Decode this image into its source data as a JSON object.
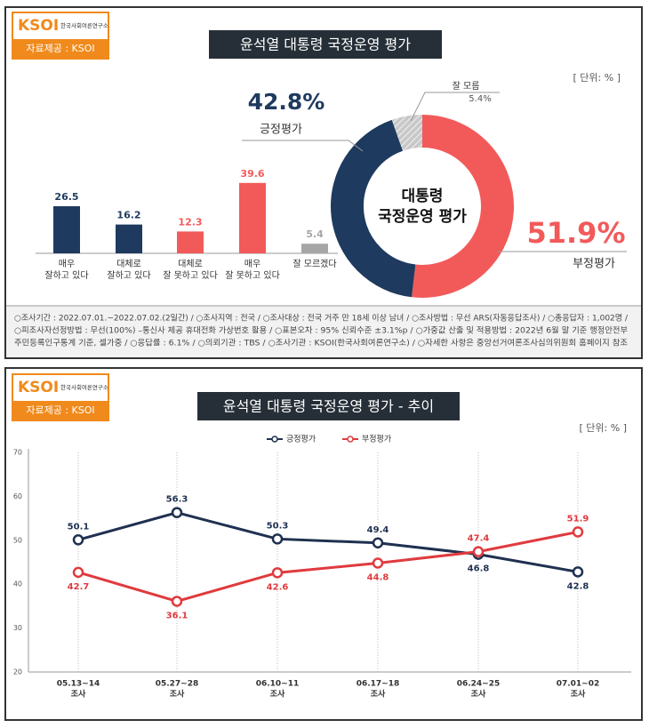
{
  "panels": [
    {
      "logo": "KSOI",
      "logo_sub": "한국사회여론연구소",
      "source": "자료제공 : KSOI",
      "title": "윤석열 대통령 국정운영 평가",
      "unit": "[ 단위: % ]",
      "footnote": [
        "○조사기간 : 2022.07.01.~2022.07.02.(2일간) / ○조사지역 : 전국 / ○조사대상 : 전국 거주 만 18세 이상 남녀 / ○조사방법 : 무선 ARS(자동응답조사) / ○총응답자 : 1,002명 /",
        "○피조사자선정방법 : 무선(100%) –통신사 제공 휴대전화 가상번호 활용 / ○표본오차 : 95% 신뢰수준 ±3.1%p / ○가중값 산출 및 적용방법 : 2022년 6월 말 기준 행정안전부",
        "주민등록인구통계 기준, 셀가중 / ○응답률 : 6.1% / ○의뢰기관 : TBS / ○조사기관 : KSOI(한국사회여론연구소) / ○자세한 사항은 중앙선거여론조사심의위원회 홈페이지 참조"
      ]
    },
    {
      "logo": "KSOI",
      "logo_sub": "한국사회여론연구소",
      "source": "자료제공 : KSOI",
      "title": "윤석열 대통령 국정운영 평가 - 추이",
      "unit": "[ 단위: % ]"
    }
  ],
  "chart_data": [
    {
      "type": "bar",
      "categories": [
        [
          "매우",
          "잘하고 있다"
        ],
        [
          "대체로",
          "잘하고 있다"
        ],
        [
          "대체로",
          "잘 못하고 있다"
        ],
        [
          "매우",
          "잘 못하고 있다"
        ],
        [
          "잘 모르겠다"
        ]
      ],
      "values": [
        26.5,
        16.2,
        12.3,
        39.6,
        5.4
      ],
      "colors": [
        "#1f3a5f",
        "#1f3a5f",
        "#f25a5a",
        "#f25a5a",
        "#a6a6a6"
      ]
    },
    {
      "type": "pie",
      "center_text": [
        "대통령",
        "국정운영 평가"
      ],
      "categories": [
        "부정평가",
        "긍정평가",
        "잘 모름"
      ],
      "values": [
        51.9,
        42.8,
        5.4
      ],
      "value_labels": [
        "51.9%",
        "42.8%",
        "5.4%"
      ],
      "colors": [
        "#f25a5a",
        "#1f3a5f",
        "#c8c8c8"
      ],
      "hatch": [
        false,
        false,
        true
      ]
    },
    {
      "type": "line",
      "categories": [
        [
          "05.13~14",
          "조사"
        ],
        [
          "05.27~28",
          "조사"
        ],
        [
          "06.10~11",
          "조사"
        ],
        [
          "06.17~18",
          "조사"
        ],
        [
          "06.24~25",
          "조사"
        ],
        [
          "07.01~02",
          "조사"
        ]
      ],
      "series": [
        {
          "name": "긍정평가",
          "color": "#1f3050",
          "values": [
            50.1,
            56.3,
            50.3,
            49.4,
            46.8,
            42.8
          ]
        },
        {
          "name": "부정평가",
          "color": "#e03a3e",
          "values": [
            42.7,
            36.1,
            42.6,
            44.8,
            47.4,
            51.9
          ]
        }
      ],
      "ylim": [
        20,
        70
      ],
      "yticks": [
        20,
        30,
        40,
        50,
        60,
        70
      ]
    }
  ]
}
